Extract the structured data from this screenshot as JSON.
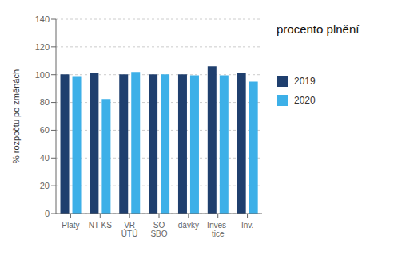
{
  "chart_data": {
    "type": "bar",
    "title": "procento plnění",
    "ylabel": "% rozpočtu po změnách",
    "categories": [
      "Platy",
      "NT KS",
      "VR\nÚTÚ",
      "SO\nSBO",
      "dávky",
      "Inves-\ntice",
      "Inv."
    ],
    "series": [
      {
        "name": "2019",
        "color": "#1F3F6E",
        "values": [
          100.3,
          101.0,
          100.3,
          100.2,
          100.2,
          106.0,
          101.5
        ]
      },
      {
        "name": "2020",
        "color": "#3DB0E8",
        "values": [
          99.0,
          82.5,
          102.0,
          100.3,
          99.5,
          99.5,
          95.0
        ]
      }
    ],
    "ylim": [
      0,
      140
    ],
    "yticks": [
      0,
      20,
      40,
      60,
      80,
      100,
      120,
      140
    ],
    "grid": true,
    "legend": "right"
  }
}
